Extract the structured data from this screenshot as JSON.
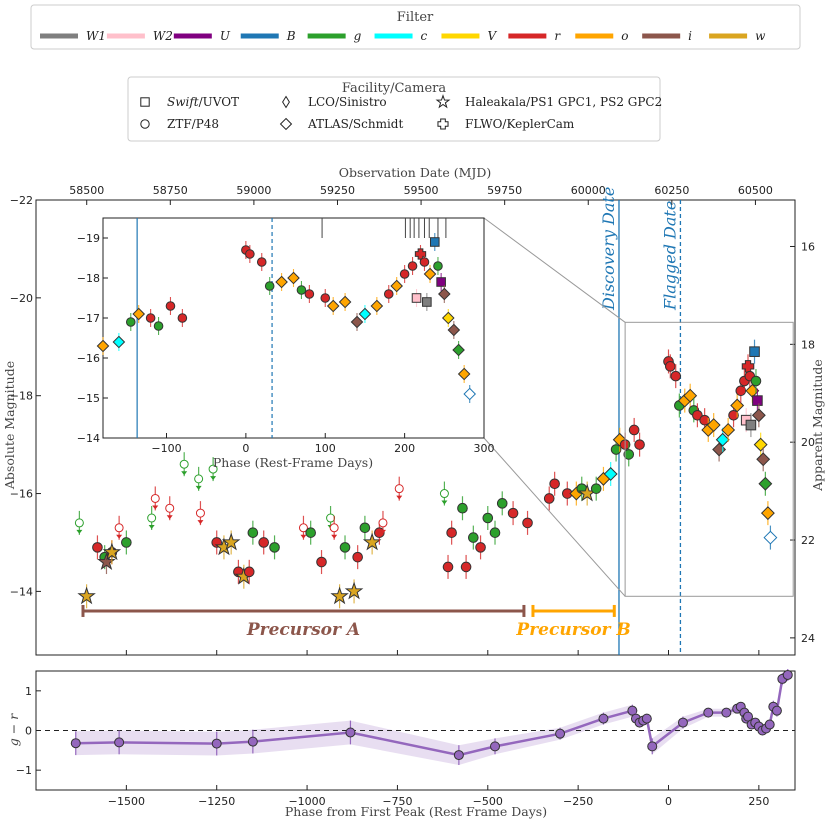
{
  "chart_data": {
    "type": "scatter",
    "filter_legend": {
      "title": "Filter",
      "entries": [
        {
          "label": "W1",
          "color": "#7f7f7f"
        },
        {
          "label": "W2",
          "color": "#ffc0cb"
        },
        {
          "label": "U",
          "color": "#800080"
        },
        {
          "label": "B",
          "color": "#1f77b4"
        },
        {
          "label": "g",
          "color": "#2ca02c"
        },
        {
          "label": "c",
          "color": "#00ffff"
        },
        {
          "label": "V",
          "color": "#ffd700"
        },
        {
          "label": "r",
          "color": "#d62728"
        },
        {
          "label": "o",
          "color": "#ffa500"
        },
        {
          "label": "i",
          "color": "#8c564b"
        },
        {
          "label": "w",
          "color": "#daa520"
        }
      ]
    },
    "facility_legend": {
      "title": "Facility/Camera",
      "entries": [
        {
          "symbol": "square",
          "label_em": "Swift",
          "label": "/UVOT"
        },
        {
          "symbol": "circle",
          "label_em": "",
          "label": "ZTF/P48"
        },
        {
          "symbol": "thin-diamond",
          "label_em": "",
          "label": "LCO/Sinistro"
        },
        {
          "symbol": "diamond",
          "label_em": "",
          "label": "ATLAS/Schmidt"
        },
        {
          "symbol": "star",
          "label_em": "",
          "label": "Haleakala/PS1 GPC1, PS2 GPC2"
        },
        {
          "symbol": "plus",
          "label_em": "",
          "label": "FLWO/KeplerCam"
        }
      ]
    },
    "main": {
      "xlabel": "Phase from First Peak (Rest Frame Days)",
      "ylabel": "Absolute Magnitude",
      "top_xlabel": "Observation Date (MJD)",
      "right_ylabel": "Apparent Magnitude",
      "xlim": [
        -1750,
        350
      ],
      "ylim": [
        -12.7,
        -22
      ],
      "right_ylim": [
        24.35,
        15.05
      ],
      "xticks": [
        -1500,
        -1250,
        -1000,
        -750,
        -500,
        -250,
        0,
        250
      ],
      "xticklabels": [
        "−1500",
        "−1250",
        "−1000",
        "−750",
        "−500",
        "−250",
        "0",
        "250"
      ],
      "yticks": [
        -14,
        -16,
        -18,
        -20,
        -22
      ],
      "yticklabels": [
        "−14",
        "−16",
        "−18",
        "−20",
        "−22"
      ],
      "top_ticks_mjd": [
        58500,
        58750,
        59000,
        59250,
        59500,
        59750,
        60000,
        60250,
        60500
      ],
      "top_ticklabels": [
        "58500",
        "58750",
        "59000",
        "59250",
        "59500",
        "59750",
        "60000",
        "60250",
        "60500"
      ],
      "right_ticks": [
        16,
        18,
        20,
        22,
        24
      ],
      "right_ticklabels": [
        "16",
        "18",
        "20",
        "22",
        "24"
      ],
      "vlines": [
        {
          "x": -137,
          "label": "Discovery Date",
          "style": "solid",
          "color": "#1f77b4"
        },
        {
          "x": 33,
          "label": "Flagged Date",
          "style": "dashed",
          "color": "#1f77b4"
        }
      ],
      "precursors": [
        {
          "label": "Precursor A",
          "x0": -1620,
          "x1": -400,
          "y": -13.6,
          "color": "#8c564b"
        },
        {
          "label": "Precursor B",
          "x0": -375,
          "x1": -150,
          "y": -13.6,
          "color": "#ffa500"
        }
      ],
      "points": [
        {
          "x": -1630,
          "y": -15.4,
          "f": "g",
          "s": "circle",
          "lim": true
        },
        {
          "x": -1580,
          "y": -14.9,
          "f": "r",
          "s": "circle"
        },
        {
          "x": -1560,
          "y": -14.7,
          "f": "g",
          "s": "circle"
        },
        {
          "x": -1540,
          "y": -14.8,
          "f": "r",
          "s": "circle"
        },
        {
          "x": -1520,
          "y": -15.3,
          "f": "r",
          "s": "circle",
          "lim": true
        },
        {
          "x": -1500,
          "y": -15.0,
          "f": "g",
          "s": "circle"
        },
        {
          "x": -1610,
          "y": -13.9,
          "f": "w",
          "s": "star"
        },
        {
          "x": -1555,
          "y": -14.6,
          "f": "i",
          "s": "star"
        },
        {
          "x": -1540,
          "y": -14.8,
          "f": "w",
          "s": "star"
        },
        {
          "x": -1430,
          "y": -15.5,
          "f": "g",
          "s": "circle",
          "lim": true
        },
        {
          "x": -1420,
          "y": -15.9,
          "f": "r",
          "s": "circle",
          "lim": true
        },
        {
          "x": -1380,
          "y": -15.7,
          "f": "r",
          "s": "circle",
          "lim": true
        },
        {
          "x": -1340,
          "y": -16.6,
          "f": "g",
          "s": "circle",
          "lim": true
        },
        {
          "x": -1300,
          "y": -16.3,
          "f": "g",
          "s": "circle",
          "lim": true
        },
        {
          "x": -1295,
          "y": -15.6,
          "f": "r",
          "s": "circle",
          "lim": true
        },
        {
          "x": -1260,
          "y": -16.5,
          "f": "g",
          "s": "circle",
          "lim": true
        },
        {
          "x": -1250,
          "y": -15.0,
          "f": "r",
          "s": "circle"
        },
        {
          "x": -1230,
          "y": -14.9,
          "f": "w",
          "s": "star"
        },
        {
          "x": -1210,
          "y": -15.0,
          "f": "w",
          "s": "star"
        },
        {
          "x": -1190,
          "y": -14.4,
          "f": "r",
          "s": "circle"
        },
        {
          "x": -1175,
          "y": -14.3,
          "f": "w",
          "s": "star"
        },
        {
          "x": -1160,
          "y": -14.4,
          "f": "r",
          "s": "circle"
        },
        {
          "x": -1150,
          "y": -15.2,
          "f": "g",
          "s": "circle"
        },
        {
          "x": -1120,
          "y": -15.0,
          "f": "r",
          "s": "circle"
        },
        {
          "x": -1090,
          "y": -14.9,
          "f": "g",
          "s": "circle"
        },
        {
          "x": -1010,
          "y": -15.3,
          "f": "r",
          "s": "circle",
          "lim": true
        },
        {
          "x": -990,
          "y": -15.2,
          "f": "g",
          "s": "circle"
        },
        {
          "x": -960,
          "y": -14.6,
          "f": "r",
          "s": "circle"
        },
        {
          "x": -935,
          "y": -15.5,
          "f": "g",
          "s": "circle",
          "lim": true
        },
        {
          "x": -925,
          "y": -15.3,
          "f": "r",
          "s": "circle",
          "lim": true
        },
        {
          "x": -910,
          "y": -13.9,
          "f": "w",
          "s": "star"
        },
        {
          "x": -895,
          "y": -14.9,
          "f": "g",
          "s": "circle"
        },
        {
          "x": -870,
          "y": -14.0,
          "f": "w",
          "s": "star"
        },
        {
          "x": -860,
          "y": -14.7,
          "f": "r",
          "s": "circle"
        },
        {
          "x": -840,
          "y": -15.3,
          "f": "g",
          "s": "circle"
        },
        {
          "x": -820,
          "y": -15.0,
          "f": "w",
          "s": "star"
        },
        {
          "x": -800,
          "y": -15.2,
          "f": "r",
          "s": "circle"
        },
        {
          "x": -790,
          "y": -15.4,
          "f": "r",
          "s": "circle",
          "lim": true
        },
        {
          "x": -745,
          "y": -16.1,
          "f": "r",
          "s": "circle",
          "lim": true
        },
        {
          "x": -620,
          "y": -16.0,
          "f": "g",
          "s": "circle",
          "lim": true
        },
        {
          "x": -610,
          "y": -14.5,
          "f": "r",
          "s": "circle"
        },
        {
          "x": -600,
          "y": -15.2,
          "f": "r",
          "s": "circle"
        },
        {
          "x": -570,
          "y": -15.7,
          "f": "g",
          "s": "circle"
        },
        {
          "x": -560,
          "y": -14.5,
          "f": "r",
          "s": "circle"
        },
        {
          "x": -540,
          "y": -15.1,
          "f": "g",
          "s": "circle"
        },
        {
          "x": -520,
          "y": -14.9,
          "f": "r",
          "s": "circle"
        },
        {
          "x": -500,
          "y": -15.5,
          "f": "g",
          "s": "circle"
        },
        {
          "x": -480,
          "y": -15.2,
          "f": "g",
          "s": "circle"
        },
        {
          "x": -460,
          "y": -15.8,
          "f": "g",
          "s": "circle"
        },
        {
          "x": -430,
          "y": -15.6,
          "f": "r",
          "s": "circle"
        },
        {
          "x": -390,
          "y": -15.4,
          "f": "r",
          "s": "circle"
        },
        {
          "x": -330,
          "y": -15.9,
          "f": "r",
          "s": "circle"
        },
        {
          "x": -315,
          "y": -16.2,
          "f": "r",
          "s": "circle"
        },
        {
          "x": -280,
          "y": -16.0,
          "f": "r",
          "s": "circle"
        },
        {
          "x": -255,
          "y": -16.0,
          "f": "o",
          "s": "diamond"
        },
        {
          "x": -240,
          "y": -16.1,
          "f": "g",
          "s": "circle"
        },
        {
          "x": -225,
          "y": -16.0,
          "f": "w",
          "s": "star"
        },
        {
          "x": -200,
          "y": -16.1,
          "f": "g",
          "s": "circle"
        },
        {
          "x": -180,
          "y": -16.3,
          "f": "o",
          "s": "diamond"
        },
        {
          "x": -160,
          "y": -16.4,
          "f": "c",
          "s": "diamond"
        },
        {
          "x": -145,
          "y": -16.9,
          "f": "g",
          "s": "circle"
        },
        {
          "x": -135,
          "y": -17.1,
          "f": "o",
          "s": "diamond"
        },
        {
          "x": -120,
          "y": -17.0,
          "f": "r",
          "s": "circle"
        },
        {
          "x": -110,
          "y": -16.8,
          "f": "g",
          "s": "circle"
        },
        {
          "x": -95,
          "y": -17.3,
          "f": "r",
          "s": "circle"
        },
        {
          "x": -80,
          "y": -17.0,
          "f": "r",
          "s": "circle"
        },
        {
          "x": 0,
          "y": -18.7,
          "f": "r",
          "s": "circle"
        },
        {
          "x": 5,
          "y": -18.6,
          "f": "r",
          "s": "circle"
        },
        {
          "x": 20,
          "y": -18.4,
          "f": "r",
          "s": "circle"
        },
        {
          "x": 30,
          "y": -17.8,
          "f": "g",
          "s": "circle"
        },
        {
          "x": 45,
          "y": -17.9,
          "f": "o",
          "s": "diamond"
        },
        {
          "x": 60,
          "y": -18.0,
          "f": "o",
          "s": "diamond"
        },
        {
          "x": 70,
          "y": -17.7,
          "f": "g",
          "s": "circle"
        },
        {
          "x": 80,
          "y": -17.6,
          "f": "r",
          "s": "circle"
        },
        {
          "x": 100,
          "y": -17.5,
          "f": "r",
          "s": "circle"
        },
        {
          "x": 110,
          "y": -17.3,
          "f": "o",
          "s": "diamond"
        },
        {
          "x": 125,
          "y": -17.4,
          "f": "o",
          "s": "diamond"
        },
        {
          "x": 140,
          "y": -16.9,
          "f": "i",
          "s": "diamond"
        },
        {
          "x": 150,
          "y": -17.1,
          "f": "c",
          "s": "diamond"
        },
        {
          "x": 165,
          "y": -17.3,
          "f": "o",
          "s": "diamond"
        },
        {
          "x": 180,
          "y": -17.6,
          "f": "r",
          "s": "circle"
        },
        {
          "x": 190,
          "y": -17.8,
          "f": "o",
          "s": "diamond"
        },
        {
          "x": 200,
          "y": -18.1,
          "f": "r",
          "s": "circle"
        },
        {
          "x": 210,
          "y": -18.3,
          "f": "r",
          "s": "circle"
        },
        {
          "x": 215,
          "y": -17.5,
          "f": "W2",
          "s": "square"
        },
        {
          "x": 220,
          "y": -18.6,
          "f": "r",
          "s": "plus"
        },
        {
          "x": 225,
          "y": -18.4,
          "f": "r",
          "s": "circle"
        },
        {
          "x": 228,
          "y": -17.4,
          "f": "W1",
          "s": "square"
        },
        {
          "x": 232,
          "y": -18.1,
          "f": "o",
          "s": "diamond"
        },
        {
          "x": 238,
          "y": -18.9,
          "f": "B",
          "s": "square"
        },
        {
          "x": 242,
          "y": -18.3,
          "f": "g",
          "s": "circle"
        },
        {
          "x": 246,
          "y": -17.9,
          "f": "U",
          "s": "square"
        },
        {
          "x": 250,
          "y": -17.6,
          "f": "i",
          "s": "diamond"
        },
        {
          "x": 255,
          "y": -17.0,
          "f": "V",
          "s": "diamond"
        },
        {
          "x": 262,
          "y": -16.7,
          "f": "i",
          "s": "diamond"
        },
        {
          "x": 268,
          "y": -16.2,
          "f": "g",
          "s": "diamond"
        },
        {
          "x": 275,
          "y": -15.6,
          "f": "o",
          "s": "diamond"
        },
        {
          "x": 282,
          "y": -15.1,
          "f": "B",
          "s": "diamond",
          "open": true
        }
      ]
    },
    "inset": {
      "xlabel": "Phase (Rest-Frame Days)",
      "xlim": [
        -180,
        300
      ],
      "ylim": [
        -14,
        -19.5
      ],
      "xticks": [
        -100,
        0,
        100,
        200,
        300
      ],
      "xticklabels": [
        "−100",
        "0",
        "100",
        "200",
        "300"
      ],
      "yticks": [
        -14,
        -15,
        -16,
        -17,
        -18,
        -19
      ],
      "yticklabels": [
        "−14",
        "−15",
        "−16",
        "−17",
        "−18",
        "−19"
      ],
      "vlines": [
        {
          "x": -137,
          "style": "solid",
          "color": "#1f77b4"
        },
        {
          "x": 33,
          "style": "dashed",
          "color": "#1f77b4"
        }
      ],
      "zoom_box": {
        "x0": -180,
        "x1": 300,
        "y0": -14,
        "y1": -19.5
      }
    },
    "color_panel": {
      "xlabel": "Phase from First Peak (Rest Frame Days)",
      "ylabel": "g − r",
      "ylim": [
        -1.5,
        1.5
      ],
      "yticks": [
        -1,
        0,
        1
      ],
      "yticklabels": [
        "−1",
        "0",
        "1"
      ],
      "line_color": "#9467bd",
      "x": [
        -1640,
        -1520,
        -1250,
        -1150,
        -880,
        -580,
        -480,
        -300,
        -180,
        -100,
        -90,
        -80,
        -70,
        -60,
        -45,
        40,
        110,
        160,
        190,
        200,
        210,
        215,
        220,
        230,
        240,
        250,
        260,
        270,
        280,
        290,
        300,
        315,
        330
      ],
      "y": [
        -0.32,
        -0.3,
        -0.33,
        -0.28,
        -0.05,
        -0.62,
        -0.4,
        -0.08,
        0.3,
        0.5,
        0.3,
        0.2,
        0.25,
        0.3,
        -0.4,
        0.2,
        0.45,
        0.45,
        0.55,
        0.6,
        0.45,
        0.3,
        0.35,
        0.15,
        0.2,
        0.1,
        0.0,
        0.05,
        0.15,
        0.6,
        0.5,
        1.3,
        1.4
      ],
      "err": [
        0.3,
        0.3,
        0.3,
        0.3,
        0.3,
        0.25,
        0.2,
        0.15,
        0.15,
        0.15,
        0.15,
        0.12,
        0.12,
        0.12,
        0.2,
        0.15,
        0.1,
        0.1,
        0.1,
        0.1,
        0.1,
        0.1,
        0.1,
        0.1,
        0.1,
        0.1,
        0.1,
        0.1,
        0.1,
        0.15,
        0.15,
        0.15,
        0.15
      ]
    }
  }
}
